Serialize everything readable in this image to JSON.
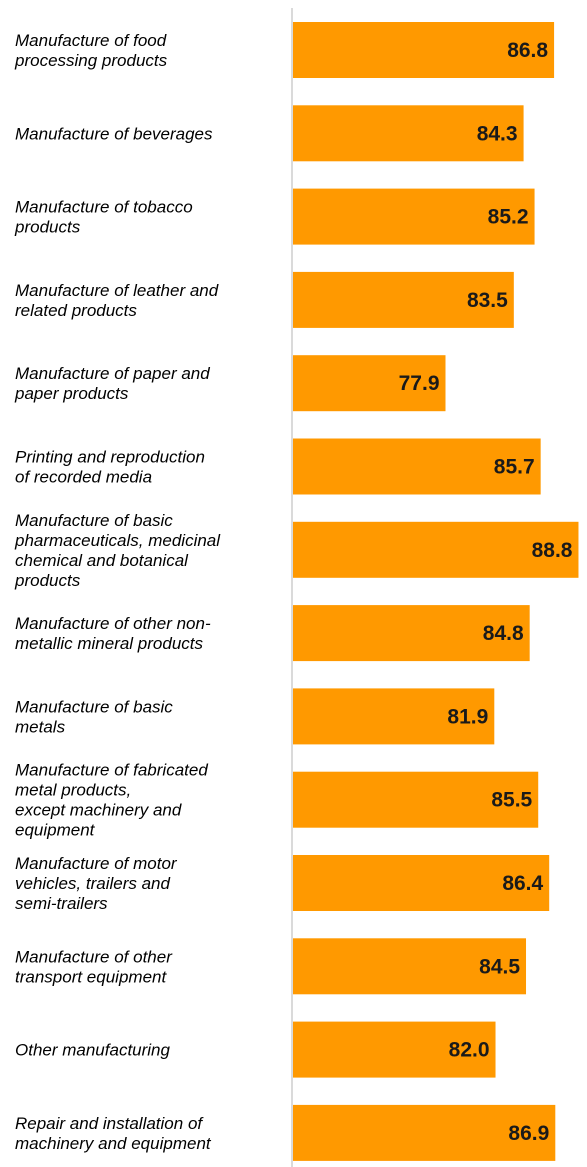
{
  "chart_data": {
    "type": "bar",
    "orientation": "horizontal",
    "categories": [
      [
        "Manufacture of food",
        "processing products"
      ],
      [
        "Manufacture of beverages"
      ],
      [
        "Manufacture of tobacco",
        "products"
      ],
      [
        "Manufacture of leather and",
        "related products"
      ],
      [
        "Manufacture of paper and",
        "paper products"
      ],
      [
        "Printing and reproduction",
        "of recorded media"
      ],
      [
        "Manufacture of basic",
        "pharmaceuticals, medicinal",
        "chemical and botanical",
        "products"
      ],
      [
        "Manufacture of other non-",
        "metallic mineral products"
      ],
      [
        "Manufacture of basic",
        "metals"
      ],
      [
        "Manufacture of fabricated",
        "metal products,",
        "except machinery and",
        "equipment"
      ],
      [
        "Manufacture of motor",
        "vehicles, trailers and",
        "semi-trailers"
      ],
      [
        "Manufacture of other",
        "transport equipment"
      ],
      [
        "Other manufacturing"
      ],
      [
        "Repair and installation of",
        "machinery and equipment"
      ]
    ],
    "values": [
      86.8,
      84.3,
      85.2,
      83.5,
      77.9,
      85.7,
      88.8,
      84.8,
      81.9,
      85.5,
      86.4,
      84.5,
      82.0,
      86.9
    ],
    "value_labels": [
      "86.8",
      "84.3",
      "85.2",
      "83.5",
      "77.9",
      "85.7",
      "88.8",
      "84.8",
      "81.9",
      "85.5",
      "86.4",
      "84.5",
      "82.0",
      "86.9"
    ],
    "bar_color": "#FF9900",
    "title": "",
    "xlabel": "",
    "ylabel": "",
    "grid": false,
    "legend": "none"
  }
}
